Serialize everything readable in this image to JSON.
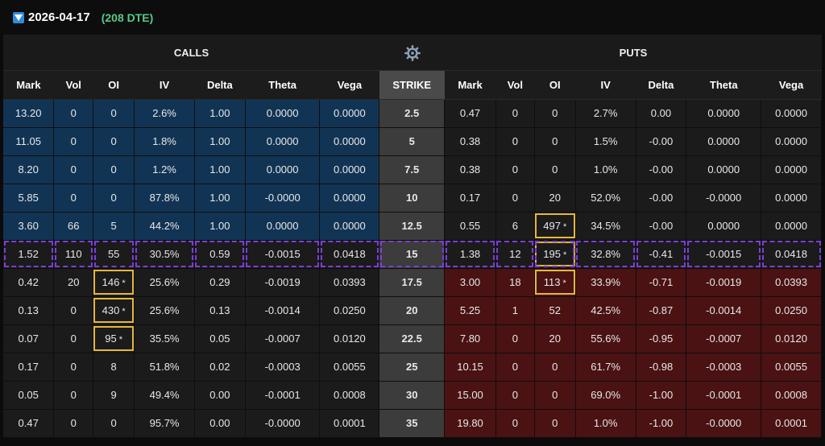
{
  "header": {
    "date": "2026-04-17",
    "dte": "(208 DTE)"
  },
  "sections": {
    "calls": "CALLS",
    "puts": "PUTS"
  },
  "columns": {
    "calls": [
      "Mark",
      "Vol",
      "OI",
      "IV",
      "Delta",
      "Theta",
      "Vega"
    ],
    "strike": "STRIKE",
    "puts": [
      "Mark",
      "Vol",
      "OI",
      "IV",
      "Delta",
      "Theta",
      "Vega"
    ]
  },
  "colors": {
    "call_itm": "#123454",
    "put_itm": "#4a1213",
    "atm_outline": "#7a3fd6",
    "oi_highlight": "#e6b73a",
    "dte": "#56c98a"
  },
  "rows": [
    {
      "strike": "2.5",
      "zone": "call_itm",
      "calls": {
        "mark": "13.20",
        "vol": "0",
        "oi": "0",
        "iv": "2.6%",
        "delta": "1.00",
        "theta": "0.0000",
        "vega": "0.0000"
      },
      "puts": {
        "mark": "0.47",
        "vol": "0",
        "oi": "0",
        "iv": "2.7%",
        "delta": "0.00",
        "theta": "0.0000",
        "vega": "0.0000"
      }
    },
    {
      "strike": "5",
      "zone": "call_itm",
      "calls": {
        "mark": "11.05",
        "vol": "0",
        "oi": "0",
        "iv": "1.8%",
        "delta": "1.00",
        "theta": "0.0000",
        "vega": "0.0000"
      },
      "puts": {
        "mark": "0.38",
        "vol": "0",
        "oi": "0",
        "iv": "1.5%",
        "delta": "-0.00",
        "theta": "0.0000",
        "vega": "0.0000"
      }
    },
    {
      "strike": "7.5",
      "zone": "call_itm",
      "calls": {
        "mark": "8.20",
        "vol": "0",
        "oi": "0",
        "iv": "1.2%",
        "delta": "1.00",
        "theta": "0.0000",
        "vega": "0.0000"
      },
      "puts": {
        "mark": "0.38",
        "vol": "0",
        "oi": "0",
        "iv": "1.0%",
        "delta": "-0.00",
        "theta": "0.0000",
        "vega": "0.0000"
      }
    },
    {
      "strike": "10",
      "zone": "call_itm",
      "calls": {
        "mark": "5.85",
        "vol": "0",
        "oi": "0",
        "iv": "87.8%",
        "delta": "1.00",
        "theta": "-0.0000",
        "vega": "0.0000"
      },
      "puts": {
        "mark": "0.17",
        "vol": "0",
        "oi": "20",
        "iv": "52.0%",
        "delta": "-0.00",
        "theta": "-0.0000",
        "vega": "0.0000"
      }
    },
    {
      "strike": "12.5",
      "zone": "call_itm",
      "calls": {
        "mark": "3.60",
        "vol": "66",
        "oi": "5",
        "iv": "44.2%",
        "delta": "1.00",
        "theta": "0.0000",
        "vega": "0.0000"
      },
      "puts": {
        "mark": "0.55",
        "vol": "6",
        "oi": "497",
        "oi_flag": "*",
        "iv": "34.5%",
        "delta": "-0.00",
        "theta": "0.0000",
        "vega": "0.0000"
      }
    },
    {
      "strike": "15",
      "zone": "atm",
      "calls": {
        "mark": "1.52",
        "vol": "110",
        "oi": "55",
        "iv": "30.5%",
        "delta": "0.59",
        "theta": "-0.0015",
        "vega": "0.0418"
      },
      "puts": {
        "mark": "1.38",
        "vol": "12",
        "oi": "195",
        "oi_flag": "*",
        "iv": "32.8%",
        "delta": "-0.41",
        "theta": "-0.0015",
        "vega": "0.0418"
      }
    },
    {
      "strike": "17.5",
      "zone": "put_itm",
      "calls": {
        "mark": "0.42",
        "vol": "20",
        "oi": "146",
        "oi_flag": "*",
        "iv": "25.6%",
        "delta": "0.29",
        "theta": "-0.0019",
        "vega": "0.0393"
      },
      "puts": {
        "mark": "3.00",
        "vol": "18",
        "oi": "113",
        "oi_flag": "*",
        "iv": "33.9%",
        "delta": "-0.71",
        "theta": "-0.0019",
        "vega": "0.0393"
      }
    },
    {
      "strike": "20",
      "zone": "put_itm",
      "calls": {
        "mark": "0.13",
        "vol": "0",
        "oi": "430",
        "oi_flag": "*",
        "iv": "25.6%",
        "delta": "0.13",
        "theta": "-0.0014",
        "vega": "0.0250"
      },
      "puts": {
        "mark": "5.25",
        "vol": "1",
        "oi": "52",
        "iv": "42.5%",
        "delta": "-0.87",
        "theta": "-0.0014",
        "vega": "0.0250"
      }
    },
    {
      "strike": "22.5",
      "zone": "put_itm",
      "calls": {
        "mark": "0.07",
        "vol": "0",
        "oi": "95",
        "oi_flag": "*",
        "iv": "35.5%",
        "delta": "0.05",
        "theta": "-0.0007",
        "vega": "0.0120"
      },
      "puts": {
        "mark": "7.80",
        "vol": "0",
        "oi": "20",
        "iv": "55.6%",
        "delta": "-0.95",
        "theta": "-0.0007",
        "vega": "0.0120"
      }
    },
    {
      "strike": "25",
      "zone": "put_itm",
      "calls": {
        "mark": "0.17",
        "vol": "0",
        "oi": "8",
        "iv": "51.8%",
        "delta": "0.02",
        "theta": "-0.0003",
        "vega": "0.0055"
      },
      "puts": {
        "mark": "10.15",
        "vol": "0",
        "oi": "0",
        "iv": "61.7%",
        "delta": "-0.98",
        "theta": "-0.0003",
        "vega": "0.0055"
      }
    },
    {
      "strike": "30",
      "zone": "put_itm",
      "calls": {
        "mark": "0.05",
        "vol": "0",
        "oi": "9",
        "iv": "49.4%",
        "delta": "0.00",
        "theta": "-0.0001",
        "vega": "0.0008"
      },
      "puts": {
        "mark": "15.00",
        "vol": "0",
        "oi": "0",
        "iv": "69.0%",
        "delta": "-1.00",
        "theta": "-0.0001",
        "vega": "0.0008"
      }
    },
    {
      "strike": "35",
      "zone": "put_itm",
      "calls": {
        "mark": "0.47",
        "vol": "0",
        "oi": "0",
        "iv": "95.7%",
        "delta": "0.00",
        "theta": "-0.0000",
        "vega": "0.0001"
      },
      "puts": {
        "mark": "19.80",
        "vol": "0",
        "oi": "0",
        "iv": "1.0%",
        "delta": "-1.00",
        "theta": "-0.0000",
        "vega": "0.0001"
      }
    }
  ]
}
